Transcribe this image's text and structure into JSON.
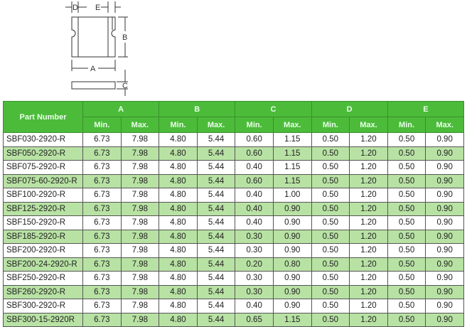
{
  "diagram": {
    "labels": [
      "D",
      "E",
      "B",
      "A",
      "C"
    ]
  },
  "table": {
    "header_part": "Part Number",
    "groups": [
      "A",
      "B",
      "C",
      "D",
      "E"
    ],
    "min_label": "Min.",
    "max_label": "Max.",
    "rows": [
      [
        "SBF030-2920-R",
        "6.73",
        "7.98",
        "4.80",
        "5.44",
        "0.60",
        "1.15",
        "0.50",
        "1.20",
        "0.50",
        "0.90"
      ],
      [
        "SBF050-2920-R",
        "6.73",
        "7.98",
        "4.80",
        "5.44",
        "0.60",
        "1.15",
        "0.50",
        "1.20",
        "0.50",
        "0.90"
      ],
      [
        "SBF075-2920-R",
        "6.73",
        "7.98",
        "4.80",
        "5.44",
        "0.40",
        "1.15",
        "0.50",
        "1.20",
        "0.50",
        "0.90"
      ],
      [
        "SBF075-60-2920-R",
        "6.73",
        "7.98",
        "4.80",
        "5.44",
        "0.60",
        "1.15",
        "0.50",
        "1.20",
        "0.50",
        "0.90"
      ],
      [
        "SBF100-2920-R",
        "6.73",
        "7.98",
        "4.80",
        "5.44",
        "0.40",
        "1.00",
        "0.50",
        "1.20",
        "0.50",
        "0.90"
      ],
      [
        "SBF125-2920-R",
        "6.73",
        "7.98",
        "4.80",
        "5.44",
        "0.40",
        "0.90",
        "0.50",
        "1.20",
        "0.50",
        "0.90"
      ],
      [
        "SBF150-2920-R",
        "6.73",
        "7.98",
        "4.80",
        "5.44",
        "0.40",
        "0.90",
        "0.50",
        "1.20",
        "0.50",
        "0.90"
      ],
      [
        "SBF185-2920-R",
        "6.73",
        "7.98",
        "4.80",
        "5.44",
        "0.30",
        "0.90",
        "0.50",
        "1.20",
        "0.50",
        "0.90"
      ],
      [
        "SBF200-2920-R",
        "6.73",
        "7.98",
        "4.80",
        "5.44",
        "0.30",
        "0.90",
        "0.50",
        "1.20",
        "0.50",
        "0.90"
      ],
      [
        "SBF200-24-2920-R",
        "6.73",
        "7.98",
        "4.80",
        "5.44",
        "0.20",
        "0.80",
        "0.50",
        "1.20",
        "0.50",
        "0.90"
      ],
      [
        "SBF250-2920-R",
        "6.73",
        "7.98",
        "4.80",
        "5.44",
        "0.30",
        "0.90",
        "0.50",
        "1.20",
        "0.50",
        "0.90"
      ],
      [
        "SBF260-2920-R",
        "6.73",
        "7.98",
        "4.80",
        "5.44",
        "0.30",
        "0.90",
        "0.50",
        "1.20",
        "0.50",
        "0.90"
      ],
      [
        "SBF300-2920-R",
        "6.73",
        "7.98",
        "4.80",
        "5.44",
        "0.40",
        "0.90",
        "0.50",
        "1.20",
        "0.50",
        "0.90"
      ],
      [
        "SBF300-15-2920R",
        "6.73",
        "7.98",
        "4.80",
        "5.44",
        "0.65",
        "1.15",
        "0.50",
        "1.20",
        "0.50",
        "0.90"
      ]
    ]
  },
  "colors": {
    "header": "#4cbb3a",
    "alt_row": "#b8e2a4"
  }
}
